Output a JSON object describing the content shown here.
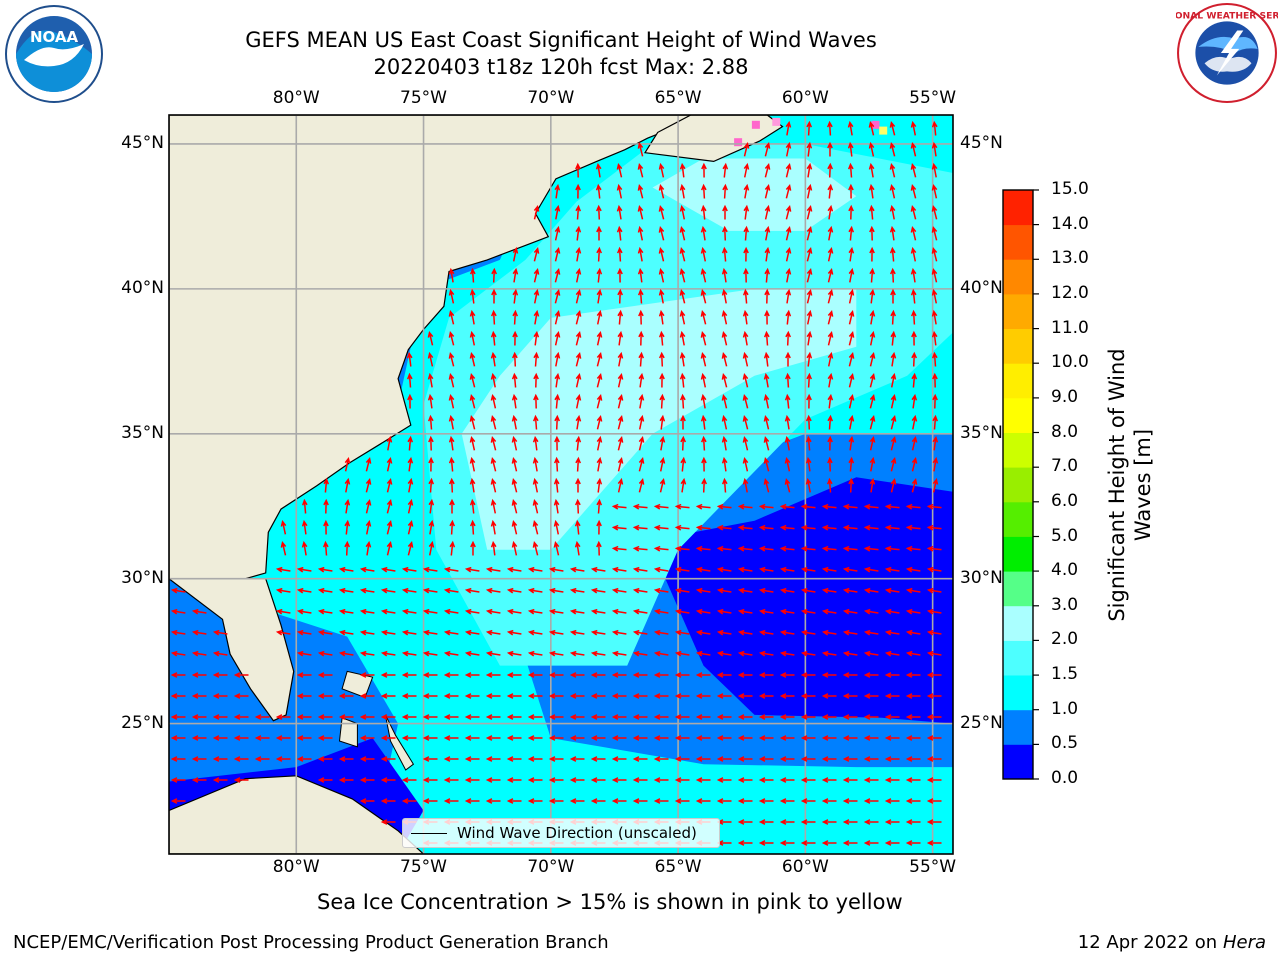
{
  "title": {
    "line1": "GEFS MEAN US East Coast Significant Height of Wind Waves",
    "line2": "20220403 t18z 120h fcst   Max: 2.88"
  },
  "map": {
    "lon_range": [
      -85,
      -54.2
    ],
    "lat_range": [
      20.5,
      46
    ],
    "lon_ticks": [
      {
        "value": -80,
        "label": "80°W"
      },
      {
        "value": -75,
        "label": "75°W"
      },
      {
        "value": -70,
        "label": "70°W"
      },
      {
        "value": -65,
        "label": "65°W"
      },
      {
        "value": -60,
        "label": "60°W"
      },
      {
        "value": -55,
        "label": "55°W"
      }
    ],
    "lat_ticks": [
      {
        "value": 45,
        "label": "45°N"
      },
      {
        "value": 40,
        "label": "40°N"
      },
      {
        "value": 35,
        "label": "35°N"
      },
      {
        "value": 30,
        "label": "30°N"
      },
      {
        "value": 25,
        "label": "25°N"
      }
    ],
    "grid": true,
    "land_color": "#efedda",
    "arrow_color": "#ff0000"
  },
  "colorbar": {
    "label": "Significant Height of Wind Waves [m]",
    "bounds": [
      0.0,
      0.5,
      1.0,
      1.5,
      2.0,
      3.0,
      4.0,
      5.0,
      6.0,
      7.0,
      8.0,
      9.0,
      10.0,
      11.0,
      12.0,
      13.0,
      14.0,
      15.0
    ],
    "tick_labels": [
      "0.0",
      "0.5",
      "1.0",
      "1.5",
      "2.0",
      "3.0",
      "4.0",
      "5.0",
      "6.0",
      "7.0",
      "8.0",
      "9.0",
      "10.0",
      "11.0",
      "12.0",
      "13.0",
      "14.0",
      "15.0"
    ],
    "colors": [
      "#0000ff",
      "#0080ff",
      "#00ffff",
      "#4dffff",
      "#aaffff",
      "#55ff88",
      "#00ee00",
      "#55ee00",
      "#99ee00",
      "#ccff00",
      "#ffff00",
      "#ffee00",
      "#ffcc00",
      "#ffaa00",
      "#ff8800",
      "#ff5500",
      "#ff2200"
    ]
  },
  "legend": {
    "label": "Wind Wave Direction (unscaled)"
  },
  "sea_ice_note": "Sea Ice Concentration > 15% is shown in pink to yellow",
  "footer": {
    "left": "NCEP/EMC/Verification Post Processing Product Generation Branch",
    "right_date": "12 Apr 2022 on",
    "right_host": "Hera"
  },
  "logos": {
    "noaa": "NOAA",
    "nws": "NATIONAL WEATHER SERVICE"
  }
}
